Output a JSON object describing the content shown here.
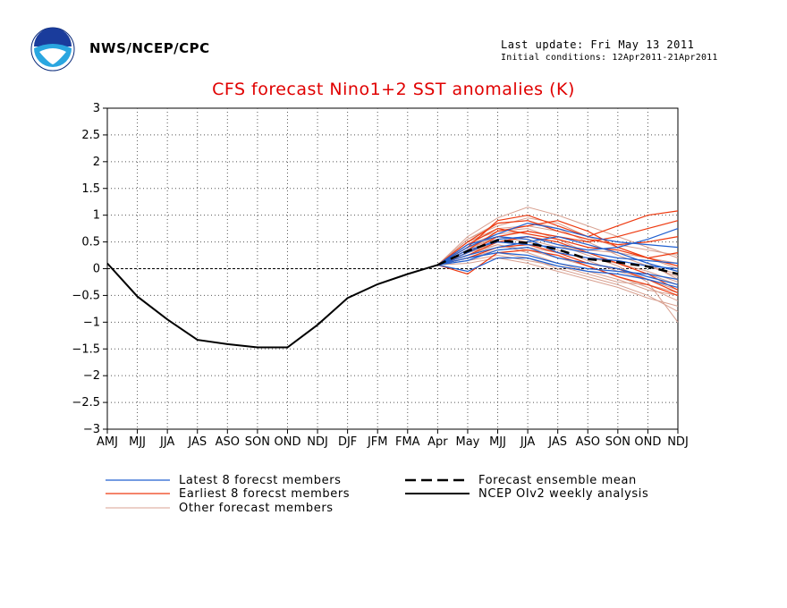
{
  "header": {
    "agency": "NWS/NCEP/CPC",
    "last_update": "Last update: Fri May 13 2011",
    "initial_conditions": "Initial conditions: 12Apr2011-21Apr2011"
  },
  "colors": {
    "title": "#e00000",
    "latest": "#2060d0",
    "earliest": "#ee3a10",
    "other": "#d8a090",
    "mean": "#000000",
    "analysis": "#000000"
  },
  "chart_data": {
    "type": "line",
    "title": "CFS forecast Nino1+2 SST anomalies (K)",
    "xlabel": "",
    "ylabel": "",
    "categories": [
      "AMJ",
      "MJJ",
      "JJA",
      "JAS",
      "ASO",
      "SON",
      "OND",
      "NDJ",
      "DJF",
      "JFM",
      "FMA",
      "Apr",
      "May",
      "MJJ",
      "JJA",
      "JAS",
      "ASO",
      "SON",
      "OND",
      "NDJ"
    ],
    "ylim": [
      -3,
      3
    ],
    "yticks": [
      -3,
      -2.5,
      -2,
      -1.5,
      -1,
      -0.5,
      0,
      0.5,
      1,
      1.5,
      2,
      2.5,
      3
    ],
    "ytick_labels": [
      "−3",
      "−2.5",
      "−2",
      "−1.5",
      "−1",
      "−0.5",
      "0",
      "0.5",
      "1",
      "1.5",
      "2",
      "2.5",
      "3"
    ],
    "grid": true,
    "legend_position": "below",
    "analysis": {
      "name": "NCEP OIv2 weekly analysis",
      "values": [
        0.1,
        -0.52,
        -0.95,
        -1.33,
        -1.41,
        -1.47,
        -1.47,
        -1.05,
        -0.55,
        -0.29,
        -0.1,
        0.07
      ]
    },
    "ensemble_mean": {
      "name": "Forecast ensemble mean",
      "values": [
        0.07,
        0.33,
        0.53,
        0.48,
        0.36,
        0.18,
        0.12,
        0.04,
        -0.1
      ]
    },
    "latest_members": {
      "name": "Latest 8 forecst members",
      "values": [
        [
          0.07,
          0.3,
          0.55,
          0.6,
          0.45,
          0.35,
          0.4,
          0.55,
          0.75
        ],
        [
          0.07,
          0.2,
          0.3,
          0.25,
          0.1,
          0.0,
          -0.05,
          -0.1,
          -0.2
        ],
        [
          0.07,
          0.4,
          0.65,
          0.85,
          0.75,
          0.6,
          0.5,
          0.45,
          0.4
        ],
        [
          0.07,
          -0.05,
          0.2,
          0.2,
          0.05,
          -0.05,
          -0.1,
          -0.2,
          -0.35
        ],
        [
          0.07,
          0.35,
          0.5,
          0.45,
          0.4,
          0.3,
          0.2,
          0.15,
          0.1
        ],
        [
          0.07,
          0.25,
          0.4,
          0.5,
          0.6,
          0.45,
          0.3,
          0.1,
          -0.05
        ],
        [
          0.07,
          0.45,
          0.6,
          0.55,
          0.3,
          0.2,
          0.15,
          0.05,
          0.0
        ],
        [
          0.07,
          0.15,
          0.35,
          0.4,
          0.2,
          0.1,
          0.0,
          -0.15,
          -0.3
        ]
      ]
    },
    "earliest_members": {
      "name": "Earliest 8 forecst members",
      "values": [
        [
          0.07,
          0.4,
          0.9,
          1.0,
          0.8,
          0.6,
          0.8,
          1.0,
          1.08
        ],
        [
          0.07,
          0.3,
          0.6,
          0.7,
          0.6,
          0.5,
          0.6,
          0.75,
          0.9
        ],
        [
          0.07,
          0.2,
          0.4,
          0.45,
          0.3,
          0.1,
          0.0,
          -0.2,
          -0.45
        ],
        [
          0.07,
          -0.1,
          0.3,
          0.35,
          0.25,
          0.05,
          -0.15,
          -0.3,
          -0.5
        ],
        [
          0.07,
          0.5,
          0.85,
          0.9,
          0.7,
          0.55,
          0.45,
          0.5,
          0.6
        ],
        [
          0.07,
          0.35,
          0.7,
          0.8,
          0.9,
          0.7,
          0.4,
          0.2,
          0.3
        ],
        [
          0.07,
          0.25,
          0.5,
          0.6,
          0.5,
          0.3,
          0.1,
          -0.1,
          -0.4
        ],
        [
          0.07,
          0.45,
          0.75,
          0.65,
          0.55,
          0.4,
          0.35,
          0.2,
          0.05
        ]
      ]
    },
    "other_members": {
      "name": "Other forecast members",
      "values": [
        [
          0.07,
          0.5,
          0.7,
          0.75,
          0.55,
          0.3,
          0.1,
          -0.1,
          -0.3
        ],
        [
          0.07,
          0.6,
          0.95,
          1.15,
          1.0,
          0.8,
          0.6,
          0.4,
          0.2
        ],
        [
          0.07,
          0.2,
          0.3,
          0.2,
          0.0,
          -0.15,
          -0.3,
          -0.5,
          -0.8
        ],
        [
          0.07,
          0.3,
          0.45,
          0.35,
          0.2,
          0.05,
          -0.15,
          -0.35,
          -0.6
        ],
        [
          0.07,
          0.4,
          0.55,
          0.6,
          0.45,
          0.25,
          0.05,
          -0.25,
          -1.0
        ],
        [
          0.07,
          0.1,
          0.2,
          0.1,
          -0.05,
          -0.2,
          -0.35,
          -0.55,
          -0.7
        ],
        [
          0.07,
          0.55,
          0.8,
          0.95,
          0.85,
          0.6,
          0.4,
          0.2,
          0.0
        ],
        [
          0.07,
          0.35,
          0.6,
          0.55,
          0.4,
          0.35,
          0.3,
          0.2,
          0.1
        ],
        [
          0.07,
          0.25,
          0.45,
          0.3,
          0.1,
          -0.05,
          -0.2,
          -0.4,
          -0.5
        ],
        [
          0.07,
          0.45,
          0.65,
          0.7,
          0.6,
          0.45,
          0.3,
          0.1,
          -0.2
        ],
        [
          0.07,
          0.15,
          0.25,
          0.15,
          0.05,
          -0.1,
          -0.25,
          -0.3,
          -0.45
        ],
        [
          0.07,
          0.5,
          0.75,
          0.8,
          0.7,
          0.55,
          0.45,
          0.35,
          0.25
        ],
        [
          0.07,
          0.3,
          0.5,
          0.45,
          0.3,
          0.2,
          0.1,
          -0.05,
          -0.25
        ],
        [
          0.07,
          0.4,
          0.6,
          0.5,
          0.35,
          0.15,
          -0.05,
          -0.2,
          -0.4
        ],
        [
          0.07,
          0.2,
          0.35,
          0.4,
          0.3,
          0.2,
          0.15,
          0.05,
          -0.1
        ],
        [
          0.07,
          0.55,
          0.85,
          0.9,
          0.75,
          0.5,
          0.25,
          0.05,
          -0.15
        ]
      ]
    }
  }
}
